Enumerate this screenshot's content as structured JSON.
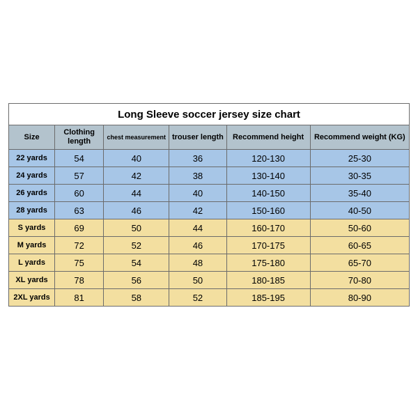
{
  "table": {
    "title": "Long Sleeve soccer jersey size chart",
    "columns": [
      {
        "key": "size",
        "label": "Size"
      },
      {
        "key": "clen",
        "label": "Clothing length"
      },
      {
        "key": "chest",
        "label": "chest measurement"
      },
      {
        "key": "tlen",
        "label": "trouser length"
      },
      {
        "key": "rh",
        "label": "Recommend height"
      },
      {
        "key": "rw",
        "label": "Recommend weight (KG)"
      }
    ],
    "rows": [
      {
        "group": "blue",
        "size": "22 yards",
        "clen": "54",
        "chest": "40",
        "tlen": "36",
        "rh": "120-130",
        "rw": "25-30"
      },
      {
        "group": "blue",
        "size": "24 yards",
        "clen": "57",
        "chest": "42",
        "tlen": "38",
        "rh": "130-140",
        "rw": "30-35"
      },
      {
        "group": "blue",
        "size": "26 yards",
        "clen": "60",
        "chest": "44",
        "tlen": "40",
        "rh": "140-150",
        "rw": "35-40"
      },
      {
        "group": "blue",
        "size": "28 yards",
        "clen": "63",
        "chest": "46",
        "tlen": "42",
        "rh": "150-160",
        "rw": "40-50"
      },
      {
        "group": "yellow",
        "size": "S yards",
        "clen": "69",
        "chest": "50",
        "tlen": "44",
        "rh": "160-170",
        "rw": "50-60"
      },
      {
        "group": "yellow",
        "size": "M yards",
        "clen": "72",
        "chest": "52",
        "tlen": "46",
        "rh": "170-175",
        "rw": "60-65"
      },
      {
        "group": "yellow",
        "size": "L yards",
        "clen": "75",
        "chest": "54",
        "tlen": "48",
        "rh": "175-180",
        "rw": "65-70"
      },
      {
        "group": "yellow",
        "size": "XL yards",
        "clen": "78",
        "chest": "56",
        "tlen": "50",
        "rh": "180-185",
        "rw": "70-80"
      },
      {
        "group": "yellow",
        "size": "2XL yards",
        "clen": "81",
        "chest": "58",
        "tlen": "52",
        "rh": "185-195",
        "rw": "80-90"
      }
    ],
    "colors": {
      "header_bg": "#b3c3cd",
      "group_blue": "#a7c6e7",
      "group_yellow": "#f3dfa0",
      "border": "#6b6b6b",
      "title_bg": "#ffffff"
    }
  }
}
